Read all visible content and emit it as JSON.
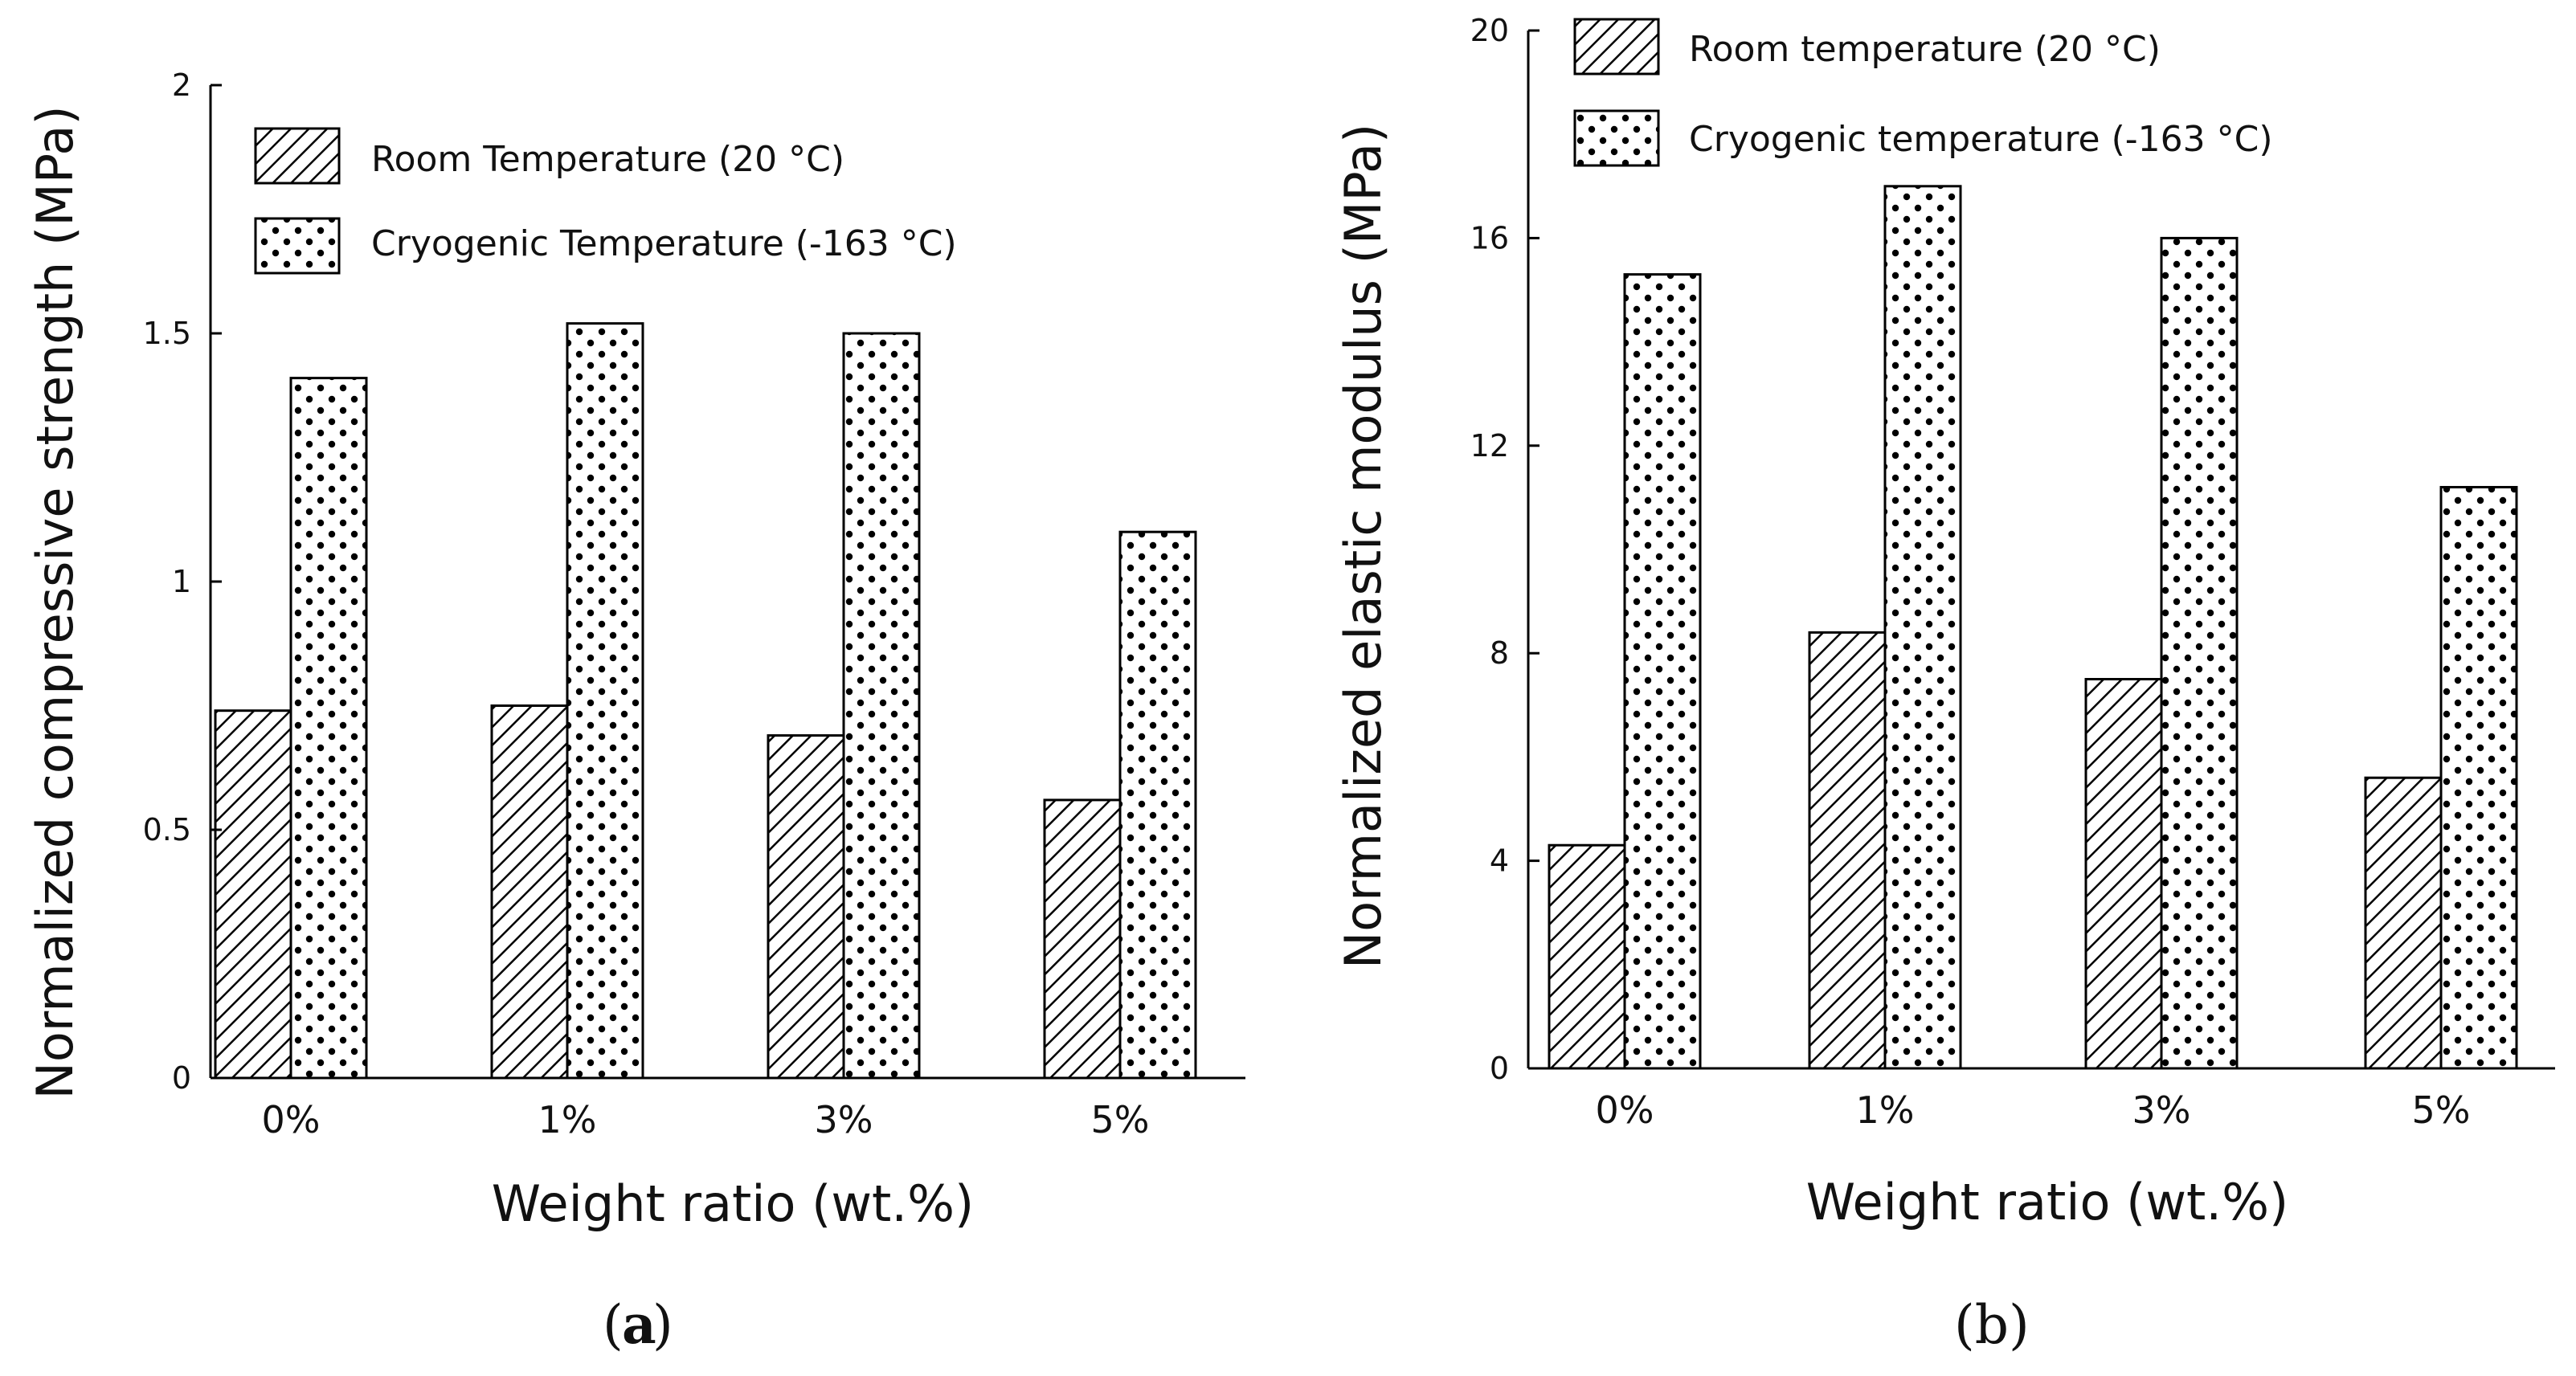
{
  "chart_data": [
    {
      "type": "bar",
      "panel_label": "a",
      "categories": [
        "0%",
        "1%",
        "3%",
        "5%"
      ],
      "series": [
        {
          "name": "Room Temperature (20 °C)",
          "pattern": "hatch",
          "values": [
            0.74,
            0.75,
            0.69,
            0.56
          ]
        },
        {
          "name": "Cryogenic Temperature (-163 °C)",
          "pattern": "dots",
          "values": [
            1.41,
            1.52,
            1.5,
            1.1
          ]
        }
      ],
      "xlabel": "Weight ratio (wt.%)",
      "ylabel": "Normalized compressive strength (MPa)",
      "ylim": [
        0,
        2
      ],
      "yticks": [
        0,
        0.5,
        1,
        1.5,
        2
      ],
      "ytick_labels": [
        "0",
        "0.5",
        "1",
        "1.5",
        "2"
      ],
      "grid": false,
      "legend_position": "top-left"
    },
    {
      "type": "bar",
      "panel_label": "(b)",
      "categories": [
        "0%",
        "1%",
        "3%",
        "5%"
      ],
      "series": [
        {
          "name": "Room temperature (20 °C)",
          "pattern": "hatch",
          "values": [
            4.3,
            8.4,
            7.5,
            5.6
          ]
        },
        {
          "name": "Cryogenic temperature (-163 °C)",
          "pattern": "dots",
          "values": [
            15.3,
            17.0,
            16.0,
            11.2
          ]
        }
      ],
      "xlabel": "Weight ratio (wt.%)",
      "ylabel": "Normalized elastic modulus (MPa)",
      "ylim": [
        0,
        20
      ],
      "yticks": [
        0,
        4,
        8,
        12,
        16,
        20
      ],
      "ytick_labels": [
        "0",
        "4",
        "8",
        "12",
        "16",
        "20"
      ],
      "grid": false,
      "legend_position": "top-left"
    }
  ]
}
